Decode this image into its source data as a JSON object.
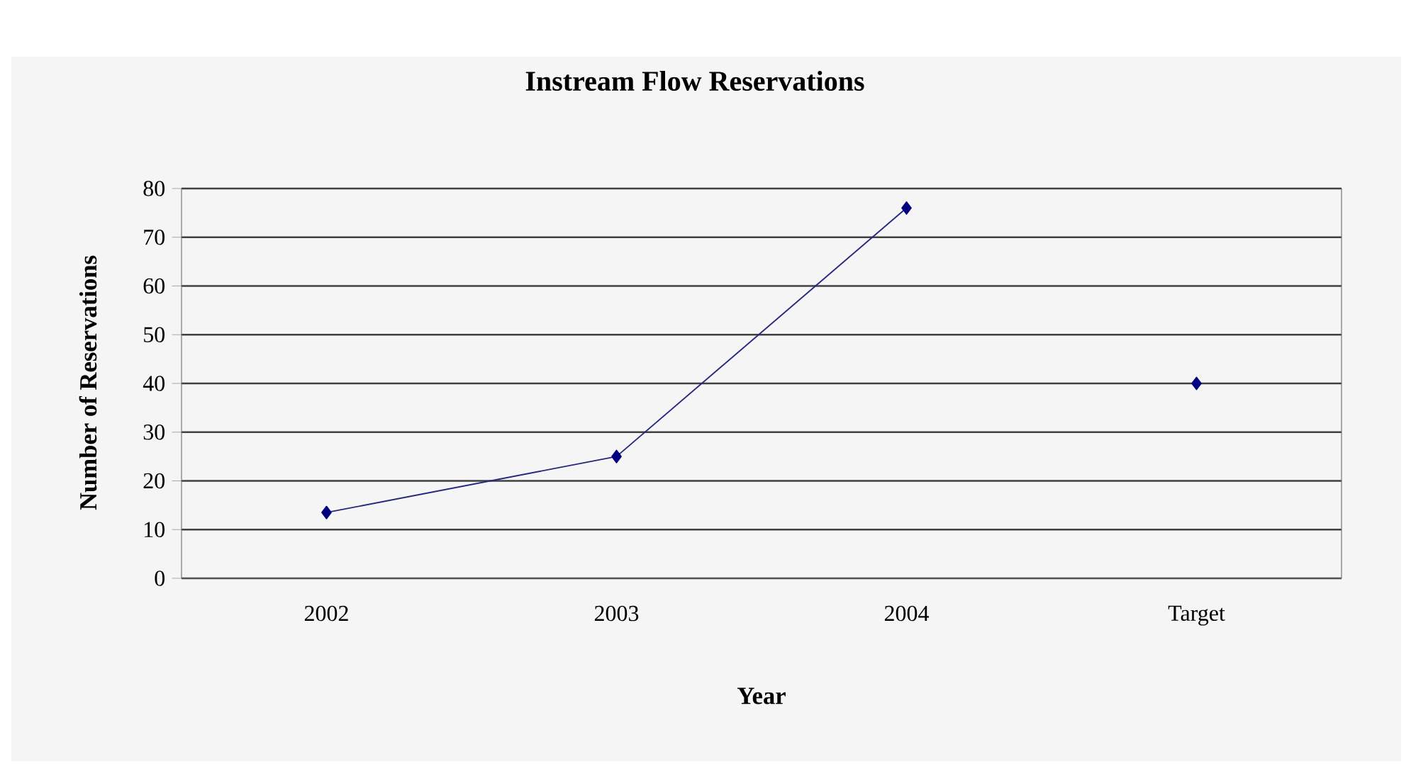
{
  "chart_data": {
    "type": "line",
    "title": "Instream Flow Reservations",
    "xlabel": "Year",
    "ylabel": "Number of Reservations",
    "categories": [
      "2002",
      "2003",
      "2004",
      "Target"
    ],
    "series": [
      {
        "color": "#000080",
        "values": [
          13.5,
          25,
          76,
          null
        ]
      },
      {
        "type": "scatter",
        "color": "#000080",
        "values": [
          null,
          null,
          null,
          40
        ]
      }
    ],
    "ylim": [
      0,
      80
    ],
    "yticks": [
      0,
      10,
      20,
      30,
      40,
      50,
      60,
      70,
      80
    ],
    "grid": "y",
    "marker": "diamond"
  }
}
